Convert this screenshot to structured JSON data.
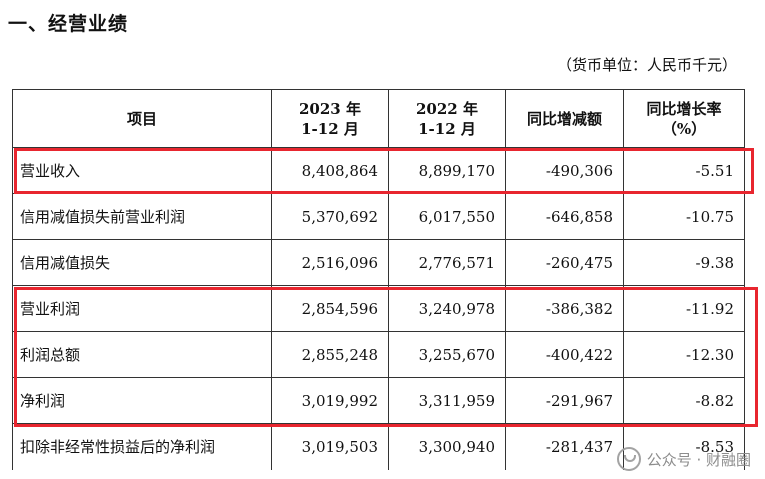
{
  "section_title": "一、经营业绩",
  "unit_note": "（货币单位：人民币千元）",
  "table": {
    "headers": [
      {
        "line1": "项目",
        "line2": ""
      },
      {
        "line1": "2023 年",
        "line2": "1-12 月"
      },
      {
        "line1": "2022 年",
        "line2": "1-12 月"
      },
      {
        "line1": "同比增减额",
        "line2": ""
      },
      {
        "line1": "同比增长率",
        "line2": "（%）"
      }
    ],
    "rows": [
      {
        "item": "营业收入",
        "y2023": "8,408,864",
        "y2022": "8,899,170",
        "change": "-490,306",
        "rate": "-5.51"
      },
      {
        "item": "信用减值损失前营业利润",
        "y2023": "5,370,692",
        "y2022": "6,017,550",
        "change": "-646,858",
        "rate": "-10.75"
      },
      {
        "item": "信用减值损失",
        "y2023": "2,516,096",
        "y2022": "2,776,571",
        "change": "-260,475",
        "rate": "-9.38"
      },
      {
        "item": "营业利润",
        "y2023": "2,854,596",
        "y2022": "3,240,978",
        "change": "-386,382",
        "rate": "-11.92"
      },
      {
        "item": "利润总额",
        "y2023": "2,855,248",
        "y2022": "3,255,670",
        "change": "-400,422",
        "rate": "-12.30"
      },
      {
        "item": "净利润",
        "y2023": "3,019,992",
        "y2022": "3,311,959",
        "change": "-291,967",
        "rate": "-8.82"
      },
      {
        "item": "扣除非经常性损益后的净利润",
        "y2023": "3,019,503",
        "y2022": "3,300,940",
        "change": "-281,437",
        "rate": "-8.53"
      }
    ]
  },
  "highlight_color": "#e8262f",
  "watermark": {
    "text": "公众号 · 财融圈",
    "icon": "wechat-icon"
  }
}
